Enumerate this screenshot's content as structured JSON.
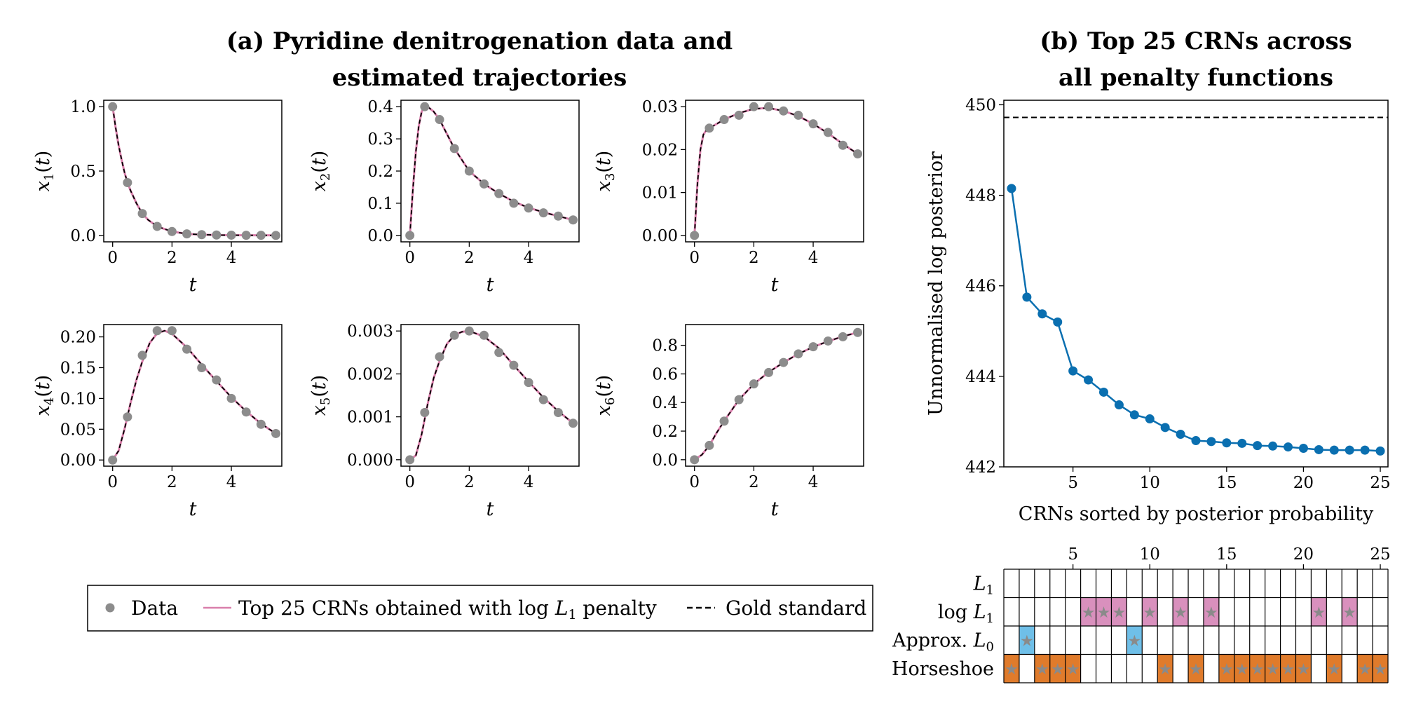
{
  "titles": {
    "a_line1": "(a) Pyridine denitrogenation data and",
    "a_line2": "estimated trajectories",
    "b_line1": "(b) Top 25 CRNs across",
    "b_line2": "all penalty functions"
  },
  "legend": {
    "data": "Data",
    "top": "Top 25 CRNs obtained with log L1 penalty",
    "top_prefix": "Top 25 CRNs obtained with log ",
    "top_sub": "1",
    "top_suffix": " penalty",
    "gold": "Gold standard"
  },
  "colors": {
    "data": "#8c8c8c",
    "top_line": "#d97fab",
    "gold": "#000000",
    "curve_b": "#0a6fb0",
    "logL1": "#d990bd",
    "approxL0": "#6fbfe8",
    "horseshoe": "#e07b2b",
    "star": "#8a8a8a"
  },
  "chart_data": [
    {
      "type": "line",
      "panel": "x1",
      "ylabel": "x1(t)",
      "yvar": "x",
      "ysub": "1",
      "xlabel": "t",
      "xlim": [
        -0.3,
        5.7
      ],
      "ylim": [
        -0.05,
        1.05
      ],
      "xticks": [
        0,
        2,
        4
      ],
      "yticks": [
        0.0,
        0.5,
        1.0
      ],
      "ytick_labels": [
        "0.0",
        "0.5",
        "1.0"
      ],
      "x": [
        0,
        0.5,
        1,
        1.5,
        2,
        2.5,
        3,
        3.5,
        4,
        4.5,
        5,
        5.5
      ],
      "data": [
        1.0,
        0.41,
        0.17,
        0.07,
        0.03,
        0.012,
        0.006,
        0.003,
        0.002,
        0.001,
        0.001,
        0.0
      ],
      "curve_x": [
        0,
        0.1,
        0.2,
        0.3,
        0.4,
        0.5,
        0.6,
        0.8,
        1.0,
        1.2,
        1.5,
        2.0,
        2.5,
        3.0,
        3.5,
        4.0,
        4.5,
        5.0,
        5.5
      ],
      "curve_y": [
        1.0,
        0.84,
        0.7,
        0.59,
        0.49,
        0.41,
        0.35,
        0.25,
        0.17,
        0.12,
        0.07,
        0.03,
        0.012,
        0.006,
        0.003,
        0.002,
        0.001,
        0.001,
        0.0
      ]
    },
    {
      "type": "line",
      "panel": "x2",
      "ylabel": "x2(t)",
      "yvar": "x",
      "ysub": "2",
      "xlabel": "t",
      "xlim": [
        -0.3,
        5.7
      ],
      "ylim": [
        -0.02,
        0.42
      ],
      "xticks": [
        0,
        2,
        4
      ],
      "yticks": [
        0.0,
        0.1,
        0.2,
        0.3,
        0.4
      ],
      "ytick_labels": [
        "0.0",
        "0.1",
        "0.2",
        "0.3",
        "0.4"
      ],
      "x": [
        0,
        0.5,
        1,
        1.5,
        2,
        2.5,
        3,
        3.5,
        4,
        4.5,
        5,
        5.5
      ],
      "data": [
        0.0,
        0.4,
        0.36,
        0.27,
        0.2,
        0.16,
        0.13,
        0.1,
        0.085,
        0.07,
        0.06,
        0.048
      ],
      "curve_x": [
        0,
        0.1,
        0.2,
        0.3,
        0.4,
        0.5,
        0.6,
        0.8,
        1.0,
        1.25,
        1.5,
        2.0,
        2.5,
        3.0,
        3.5,
        4.0,
        4.5,
        5.0,
        5.5
      ],
      "curve_y": [
        0.0,
        0.14,
        0.26,
        0.34,
        0.385,
        0.4,
        0.4,
        0.385,
        0.36,
        0.315,
        0.27,
        0.2,
        0.16,
        0.13,
        0.105,
        0.086,
        0.072,
        0.06,
        0.048
      ]
    },
    {
      "type": "line",
      "panel": "x3",
      "ylabel": "x3(t)",
      "yvar": "x",
      "ysub": "3",
      "xlabel": "t",
      "xlim": [
        -0.3,
        5.7
      ],
      "ylim": [
        -0.0015,
        0.0315
      ],
      "xticks": [
        0,
        2,
        4
      ],
      "yticks": [
        0.0,
        0.01,
        0.02,
        0.03
      ],
      "ytick_labels": [
        "0.00",
        "0.01",
        "0.02",
        "0.03"
      ],
      "x": [
        0,
        0.5,
        1,
        1.5,
        2,
        2.5,
        3,
        3.5,
        4,
        4.5,
        5,
        5.5
      ],
      "data": [
        0.0,
        0.025,
        0.027,
        0.028,
        0.03,
        0.03,
        0.029,
        0.028,
        0.026,
        0.024,
        0.021,
        0.019
      ],
      "curve_x": [
        0,
        0.1,
        0.2,
        0.3,
        0.4,
        0.5,
        0.75,
        1.0,
        1.5,
        2.0,
        2.5,
        3.0,
        3.5,
        4.0,
        4.5,
        5.0,
        5.5
      ],
      "curve_y": [
        0.0,
        0.012,
        0.02,
        0.0235,
        0.0245,
        0.025,
        0.026,
        0.027,
        0.0285,
        0.0295,
        0.0297,
        0.029,
        0.0278,
        0.026,
        0.0238,
        0.0213,
        0.019
      ]
    },
    {
      "type": "line",
      "panel": "x4",
      "ylabel": "x4(t)",
      "yvar": "x",
      "ysub": "4",
      "xlabel": "t",
      "xlim": [
        -0.3,
        5.7
      ],
      "ylim": [
        -0.01,
        0.22
      ],
      "xticks": [
        0,
        2,
        4
      ],
      "yticks": [
        0.0,
        0.05,
        0.1,
        0.15,
        0.2
      ],
      "ytick_labels": [
        "0.00",
        "0.05",
        "0.10",
        "0.15",
        "0.20"
      ],
      "x": [
        0,
        0.5,
        1,
        1.5,
        2,
        2.5,
        3,
        3.5,
        4,
        4.5,
        5,
        5.5
      ],
      "data": [
        0.0,
        0.07,
        0.17,
        0.21,
        0.21,
        0.18,
        0.15,
        0.13,
        0.1,
        0.078,
        0.058,
        0.043
      ],
      "curve_x": [
        0,
        0.2,
        0.4,
        0.6,
        0.8,
        1.0,
        1.25,
        1.5,
        1.75,
        2.0,
        2.5,
        3.0,
        3.5,
        4.0,
        4.5,
        5.0,
        5.5
      ],
      "curve_y": [
        0.0,
        0.015,
        0.05,
        0.092,
        0.13,
        0.16,
        0.19,
        0.206,
        0.21,
        0.205,
        0.183,
        0.155,
        0.128,
        0.102,
        0.079,
        0.059,
        0.043
      ]
    },
    {
      "type": "line",
      "panel": "x5",
      "ylabel": "x5(t)",
      "yvar": "x",
      "ysub": "5",
      "xlabel": "t",
      "xlim": [
        -0.3,
        5.7
      ],
      "ylim": [
        -0.00015,
        0.00315
      ],
      "xticks": [
        0,
        2,
        4
      ],
      "yticks": [
        0.0,
        0.001,
        0.002,
        0.003
      ],
      "ytick_labels": [
        "0.000",
        "0.001",
        "0.002",
        "0.003"
      ],
      "x": [
        0,
        0.5,
        1,
        1.5,
        2,
        2.5,
        3,
        3.5,
        4,
        4.5,
        5,
        5.5
      ],
      "data": [
        0.0,
        0.0011,
        0.0024,
        0.0029,
        0.003,
        0.0029,
        0.0025,
        0.0022,
        0.0018,
        0.0014,
        0.0011,
        0.00085
      ],
      "curve_x": [
        0,
        0.2,
        0.4,
        0.6,
        0.8,
        1.0,
        1.25,
        1.5,
        1.75,
        2.0,
        2.5,
        3.0,
        3.5,
        4.0,
        4.5,
        5.0,
        5.5
      ],
      "curve_y": [
        0.0,
        0.0001,
        0.0006,
        0.0013,
        0.0019,
        0.0023,
        0.0027,
        0.0029,
        0.00298,
        0.003,
        0.00287,
        0.0026,
        0.0022,
        0.00182,
        0.00145,
        0.00113,
        0.00085
      ]
    },
    {
      "type": "line",
      "panel": "x6",
      "ylabel": "x6(t)",
      "yvar": "x",
      "ysub": "6",
      "xlabel": "t",
      "xlim": [
        -0.3,
        5.7
      ],
      "ylim": [
        -0.045,
        0.945
      ],
      "xticks": [
        0,
        2,
        4
      ],
      "yticks": [
        0.0,
        0.2,
        0.4,
        0.6,
        0.8
      ],
      "ytick_labels": [
        "0.0",
        "0.2",
        "0.4",
        "0.6",
        "0.8"
      ],
      "x": [
        0,
        0.5,
        1,
        1.5,
        2,
        2.5,
        3,
        3.5,
        4,
        4.5,
        5,
        5.5
      ],
      "data": [
        0.0,
        0.1,
        0.27,
        0.42,
        0.53,
        0.61,
        0.68,
        0.74,
        0.79,
        0.83,
        0.86,
        0.89
      ],
      "curve_x": [
        0,
        0.25,
        0.5,
        0.75,
        1.0,
        1.5,
        2.0,
        2.5,
        3.0,
        3.5,
        4.0,
        4.5,
        5.0,
        5.5
      ],
      "curve_y": [
        0.0,
        0.035,
        0.1,
        0.19,
        0.27,
        0.42,
        0.53,
        0.612,
        0.68,
        0.74,
        0.788,
        0.828,
        0.862,
        0.89
      ]
    },
    {
      "type": "line",
      "panel": "posterior",
      "ylabel": "Unnormalised log posterior",
      "xlabel": "CRNs sorted by posterior probability",
      "xlim": [
        0.5,
        25.5
      ],
      "ylim": [
        442.0,
        450.1
      ],
      "xticks": [
        5,
        10,
        15,
        20,
        25
      ],
      "yticks": [
        442,
        444,
        446,
        448,
        450
      ],
      "x": [
        1,
        2,
        3,
        4,
        5,
        6,
        7,
        8,
        9,
        10,
        11,
        12,
        13,
        14,
        15,
        16,
        17,
        18,
        19,
        20,
        21,
        22,
        23,
        24,
        25
      ],
      "values": [
        448.15,
        445.75,
        445.38,
        445.2,
        444.12,
        443.92,
        443.65,
        443.37,
        443.15,
        443.06,
        442.87,
        442.72,
        442.58,
        442.56,
        442.53,
        442.52,
        442.47,
        442.46,
        442.44,
        442.41,
        442.38,
        442.37,
        442.37,
        442.37,
        442.35
      ],
      "gold_standard": 449.72
    },
    {
      "type": "heatmap",
      "panel": "penalty-grid",
      "columns": [
        1,
        2,
        3,
        4,
        5,
        6,
        7,
        8,
        9,
        10,
        11,
        12,
        13,
        14,
        15,
        16,
        17,
        18,
        19,
        20,
        21,
        22,
        23,
        24,
        25
      ],
      "xticks": [
        5,
        10,
        15,
        20,
        25
      ],
      "rows": [
        {
          "name": "L1",
          "label_prefix": "",
          "label_var": "L",
          "label_sub": "1",
          "color_key": "logL1",
          "cells": []
        },
        {
          "name": "log L1",
          "label_prefix": "log ",
          "label_var": "L",
          "label_sub": "1",
          "color_key": "logL1",
          "cells": [
            6,
            7,
            8,
            10,
            12,
            14,
            21,
            23
          ]
        },
        {
          "name": "Approx. L0",
          "label_prefix": "Approx. ",
          "label_var": "L",
          "label_sub": "0",
          "color_key": "approxL0",
          "cells": [
            2,
            9
          ]
        },
        {
          "name": "Horseshoe",
          "label_prefix": "Horseshoe",
          "label_var": "",
          "label_sub": "",
          "color_key": "horseshoe",
          "cells": [
            1,
            3,
            4,
            5,
            11,
            13,
            15,
            16,
            17,
            18,
            19,
            20,
            22,
            24,
            25
          ]
        }
      ]
    }
  ]
}
